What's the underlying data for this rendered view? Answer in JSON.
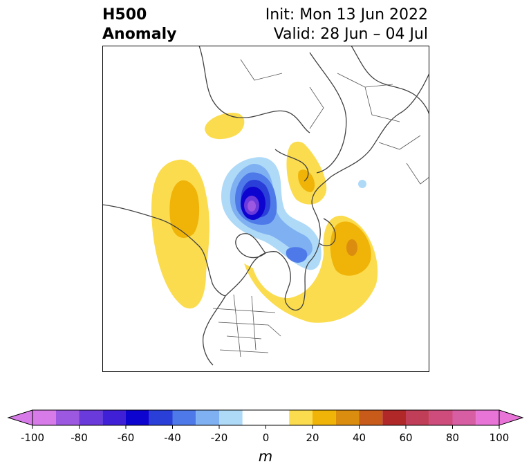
{
  "title": {
    "left_line1": "H500",
    "left_line2": "Anomaly",
    "init": "Init: Mon 13 Jun 2022",
    "valid": "Valid: 28 Jun – 04 Jul"
  },
  "colorbar": {
    "unit": "m",
    "ticks": [
      "-100",
      "-80",
      "-60",
      "-40",
      "-20",
      "0",
      "20",
      "40",
      "60",
      "80",
      "100"
    ],
    "levels": [
      -100,
      -90,
      -80,
      -70,
      -60,
      -50,
      -40,
      -30,
      -20,
      -10,
      10,
      20,
      30,
      40,
      50,
      60,
      70,
      80,
      90,
      100
    ],
    "colors": [
      "#d77be8",
      "#9c58e0",
      "#6b3ada",
      "#3f20d6",
      "#0e04d0",
      "#2a3fd8",
      "#4e79e8",
      "#7fb1f2",
      "#aedaf8",
      "#ffffff",
      "#fbdc4e",
      "#f0b308",
      "#db8d10",
      "#c85a1a",
      "#b12828",
      "#c13e58",
      "#cd4c7c",
      "#d85ea4",
      "#e774d6"
    ],
    "extend": "both"
  },
  "map": {
    "projection": "north-polar stereographic",
    "region": "North America / Arctic / North Atlantic",
    "variable": "500 hPa geopotential height anomaly"
  }
}
